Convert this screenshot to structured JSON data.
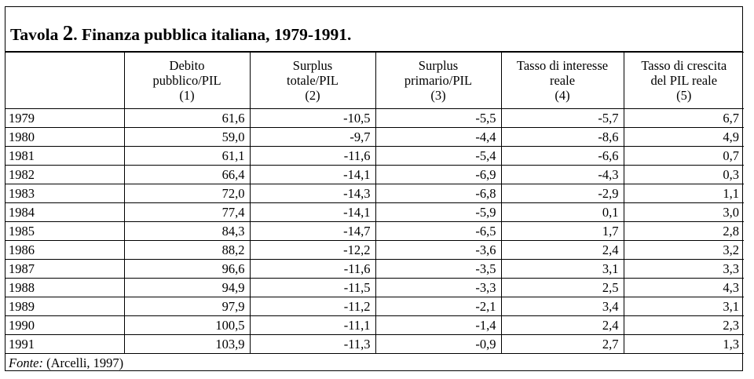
{
  "title": {
    "prefix": "Tavola ",
    "number": "2",
    "rest": ". Finanza pubblica italiana, 1979-1991."
  },
  "columns": [
    {
      "line1": "Debito",
      "line2": "pubblico/PIL",
      "line3": "(1)"
    },
    {
      "line1": "Surplus",
      "line2": "totale/PIL",
      "line3": "(2)"
    },
    {
      "line1": "Surplus",
      "line2": "primario/PIL",
      "line3": "(3)"
    },
    {
      "line1": "Tasso di interesse",
      "line2": "reale",
      "line3": "(4)"
    },
    {
      "line1": "Tasso di crescita",
      "line2": "del PIL reale",
      "line3": "(5)"
    }
  ],
  "rows": [
    {
      "year": "1979",
      "values": [
        "61,6",
        "-10,5",
        "-5,5",
        "-5,7",
        "6,7"
      ]
    },
    {
      "year": "1980",
      "values": [
        "59,0",
        "-9,7",
        "-4,4",
        "-8,6",
        "4,9"
      ]
    },
    {
      "year": "1981",
      "values": [
        "61,1",
        "-11,6",
        "-5,4",
        "-6,6",
        "0,7"
      ]
    },
    {
      "year": "1982",
      "values": [
        "66,4",
        "-14,1",
        "-6,9",
        "-4,3",
        "0,3"
      ]
    },
    {
      "year": "1983",
      "values": [
        "72,0",
        "-14,3",
        "-6,8",
        "-2,9",
        "1,1"
      ]
    },
    {
      "year": "1984",
      "values": [
        "77,4",
        "-14,1",
        "-5,9",
        "0,1",
        "3,0"
      ]
    },
    {
      "year": "1985",
      "values": [
        "84,3",
        "-14,7",
        "-6,5",
        "1,7",
        "2,8"
      ]
    },
    {
      "year": "1986",
      "values": [
        "88,2",
        "-12,2",
        "-3,6",
        "2,4",
        "3,2"
      ]
    },
    {
      "year": "1987",
      "values": [
        "96,6",
        "-11,6",
        "-3,5",
        "3,1",
        "3,3"
      ]
    },
    {
      "year": "1988",
      "values": [
        "94,9",
        "-11,5",
        "-3,3",
        "2,5",
        "4,3"
      ]
    },
    {
      "year": "1989",
      "values": [
        "97,9",
        "-11,2",
        "-2,1",
        "3,4",
        "3,1"
      ]
    },
    {
      "year": "1990",
      "values": [
        "100,5",
        "-11,1",
        "-1,4",
        "2,4",
        "2,3"
      ]
    },
    {
      "year": "1991",
      "values": [
        "103,9",
        "-11,3",
        "-0,9",
        "2,7",
        "1,3"
      ]
    }
  ],
  "source": {
    "label": "Fonte:",
    "text": " (Arcelli, 1997)"
  }
}
